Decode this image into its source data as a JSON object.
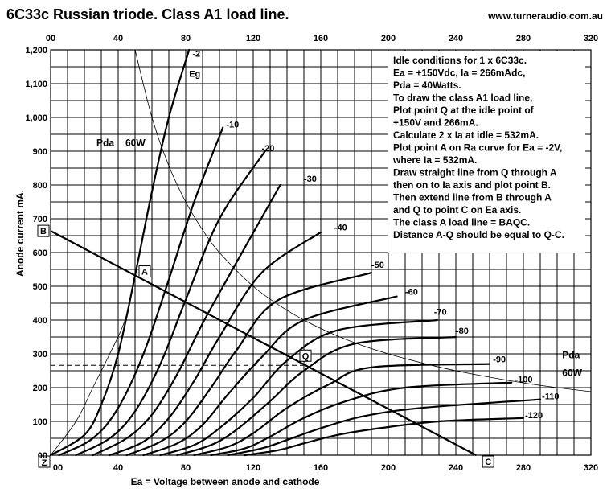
{
  "header": {
    "title": "6C33c Russian triode. Class A1 load line.",
    "website": "www.turneraudio.com.au"
  },
  "notes": [
    "Idle conditions for 1 x 6C33c.",
    "Ea = +150Vdc, Ia = 266mAdc,",
    "Pda = 40Watts.",
    "To draw the class A1 load line,",
    "Plot point Q at the idle point of",
    "+150V and 266mA.",
    "Calculate 2 x Ia at idle = 532mA.",
    "Plot point A on Ra curve for Ea = -2V,",
    "where Ia = 532mA.",
    "Draw straight line from Q through A",
    "then on to Ia axis and plot point B.",
    "Then extend line from B through A",
    "and Q to point C on Ea axis.",
    "The class A load line = BAQC.",
    "Distance A-Q should be equal to Q-C."
  ],
  "chart_data": {
    "type": "line",
    "title": "6C33c Russian triode. Class A1 load line.",
    "xlabel": "Ea = Voltage between anode and cathode",
    "ylabel": "Anode current mA.",
    "xlim": [
      0,
      320
    ],
    "ylim": [
      0,
      1200
    ],
    "grid": true,
    "x_ticks_top": [
      "00",
      "40",
      "80",
      "120",
      "160",
      "200",
      "240",
      "280",
      "320"
    ],
    "x_ticks_bottom": [
      "00",
      "40",
      "80",
      "120",
      "160",
      "200",
      "240",
      "280",
      "320"
    ],
    "y_ticks": [
      "00",
      "100",
      "200",
      "300",
      "400",
      "500",
      "600",
      "700",
      "800",
      "900",
      "1,000",
      "1,100",
      "1,200"
    ],
    "grid_x": [
      0,
      10,
      20,
      30,
      40,
      50,
      60,
      70,
      80,
      90,
      100,
      110,
      120,
      130,
      140,
      150,
      160,
      170,
      180,
      190,
      200,
      210,
      220,
      230,
      240,
      250,
      260,
      270,
      280,
      290,
      300,
      310,
      320
    ],
    "grid_y": [
      0,
      50,
      100,
      150,
      200,
      250,
      300,
      350,
      400,
      450,
      500,
      550,
      600,
      650,
      700,
      750,
      800,
      850,
      900,
      950,
      1000,
      1050,
      1100,
      1150,
      1200
    ],
    "grid_label": "Eg",
    "grid_curves": [
      {
        "name": "-2",
        "points": [
          [
            0,
            0
          ],
          [
            20,
            60
          ],
          [
            30,
            150
          ],
          [
            40,
            300
          ],
          [
            50,
            532
          ],
          [
            60,
            780
          ],
          [
            70,
            1000
          ],
          [
            82,
            1200
          ]
        ],
        "label_at": [
          84,
          1180
        ]
      },
      {
        "name": "-10",
        "points": [
          [
            5,
            0
          ],
          [
            25,
            50
          ],
          [
            40,
            140
          ],
          [
            55,
            300
          ],
          [
            70,
            520
          ],
          [
            85,
            750
          ],
          [
            102,
            970
          ]
        ],
        "label_at": [
          104,
          970
        ]
      },
      {
        "name": "-20",
        "points": [
          [
            15,
            0
          ],
          [
            35,
            50
          ],
          [
            50,
            130
          ],
          [
            65,
            270
          ],
          [
            80,
            460
          ],
          [
            100,
            700
          ],
          [
            127,
            900
          ]
        ],
        "label_at": [
          125,
          900
        ]
      },
      {
        "name": "-30",
        "points": [
          [
            25,
            0
          ],
          [
            45,
            50
          ],
          [
            60,
            120
          ],
          [
            75,
            240
          ],
          [
            90,
            390
          ],
          [
            110,
            570
          ],
          [
            136,
            800
          ]
        ],
        "label_at": [
          150,
          810
        ]
      },
      {
        "name": "-40",
        "points": [
          [
            35,
            0
          ],
          [
            55,
            40
          ],
          [
            70,
            110
          ],
          [
            85,
            220
          ],
          [
            100,
            350
          ],
          [
            125,
            540
          ],
          [
            160,
            660
          ]
        ],
        "label_at": [
          168,
          665
        ]
      },
      {
        "name": "-50",
        "points": [
          [
            45,
            0
          ],
          [
            65,
            40
          ],
          [
            80,
            100
          ],
          [
            95,
            200
          ],
          [
            110,
            310
          ],
          [
            135,
            460
          ],
          [
            190,
            540
          ]
        ],
        "label_at": [
          190,
          555
        ]
      },
      {
        "name": "-60",
        "points": [
          [
            55,
            0
          ],
          [
            75,
            35
          ],
          [
            90,
            90
          ],
          [
            105,
            180
          ],
          [
            125,
            290
          ],
          [
            150,
            400
          ],
          [
            205,
            470
          ]
        ],
        "label_at": [
          210,
          475
        ]
      },
      {
        "name": "-70",
        "points": [
          [
            65,
            0
          ],
          [
            85,
            30
          ],
          [
            100,
            80
          ],
          [
            120,
            170
          ],
          [
            140,
            280
          ],
          [
            170,
            370
          ],
          [
            229,
            400
          ]
        ],
        "label_at": [
          227,
          415
        ]
      },
      {
        "name": "-80",
        "points": [
          [
            75,
            0
          ],
          [
            95,
            30
          ],
          [
            110,
            75
          ],
          [
            130,
            160
          ],
          [
            150,
            250
          ],
          [
            180,
            330
          ],
          [
            240,
            350
          ]
        ],
        "label_at": [
          240,
          360
        ]
      },
      {
        "name": "-90",
        "points": [
          [
            85,
            0
          ],
          [
            105,
            25
          ],
          [
            120,
            65
          ],
          [
            140,
            140
          ],
          [
            165,
            210
          ],
          [
            190,
            260
          ],
          [
            260,
            270
          ]
        ],
        "label_at": [
          262,
          275
        ]
      },
      {
        "name": "-100",
        "points": [
          [
            95,
            0
          ],
          [
            115,
            20
          ],
          [
            130,
            55
          ],
          [
            150,
            110
          ],
          [
            175,
            160
          ],
          [
            210,
            200
          ],
          [
            273,
            215
          ]
        ],
        "label_at": [
          275,
          215
        ]
      },
      {
        "name": "-110",
        "points": [
          [
            105,
            0
          ],
          [
            125,
            20
          ],
          [
            140,
            45
          ],
          [
            160,
            80
          ],
          [
            185,
            115
          ],
          [
            220,
            140
          ],
          [
            290,
            165
          ]
        ],
        "label_at": [
          291,
          165
        ]
      },
      {
        "name": "-120",
        "points": [
          [
            115,
            0
          ],
          [
            135,
            15
          ],
          [
            150,
            35
          ],
          [
            170,
            60
          ],
          [
            195,
            80
          ],
          [
            230,
            100
          ],
          [
            280,
            110
          ]
        ],
        "label_at": [
          281,
          110
        ]
      }
    ],
    "pda_curve": {
      "label": "Pda",
      "value": "60W",
      "points": [
        [
          50,
          1200
        ],
        [
          60,
          1000
        ],
        [
          70,
          857
        ],
        [
          80,
          750
        ],
        [
          90,
          667
        ],
        [
          100,
          600
        ],
        [
          120,
          500
        ],
        [
          140,
          429
        ],
        [
          160,
          375
        ],
        [
          180,
          333
        ],
        [
          200,
          300
        ],
        [
          220,
          273
        ],
        [
          240,
          250
        ],
        [
          260,
          231
        ],
        [
          280,
          214
        ],
        [
          300,
          200
        ],
        [
          320,
          188
        ]
      ],
      "label_positions": {
        "left": [
          30,
          915
        ],
        "right": [
          303,
          270
        ]
      }
    },
    "load_line": {
      "label": "BAQC",
      "points": [
        {
          "name": "B",
          "x": 0,
          "y": 664
        },
        {
          "name": "A",
          "x": 50,
          "y": 532
        },
        {
          "name": "Q",
          "x": 150,
          "y": 266
        },
        {
          "name": "C",
          "x": 252,
          "y": 0
        }
      ]
    },
    "idle_guide": {
      "ea": 150,
      "ia": 266
    },
    "ra_curve": {
      "points": [
        [
          0,
          0
        ],
        [
          15,
          100
        ],
        [
          25,
          200
        ],
        [
          35,
          300
        ],
        [
          44,
          400
        ],
        [
          50,
          532
        ]
      ]
    }
  }
}
